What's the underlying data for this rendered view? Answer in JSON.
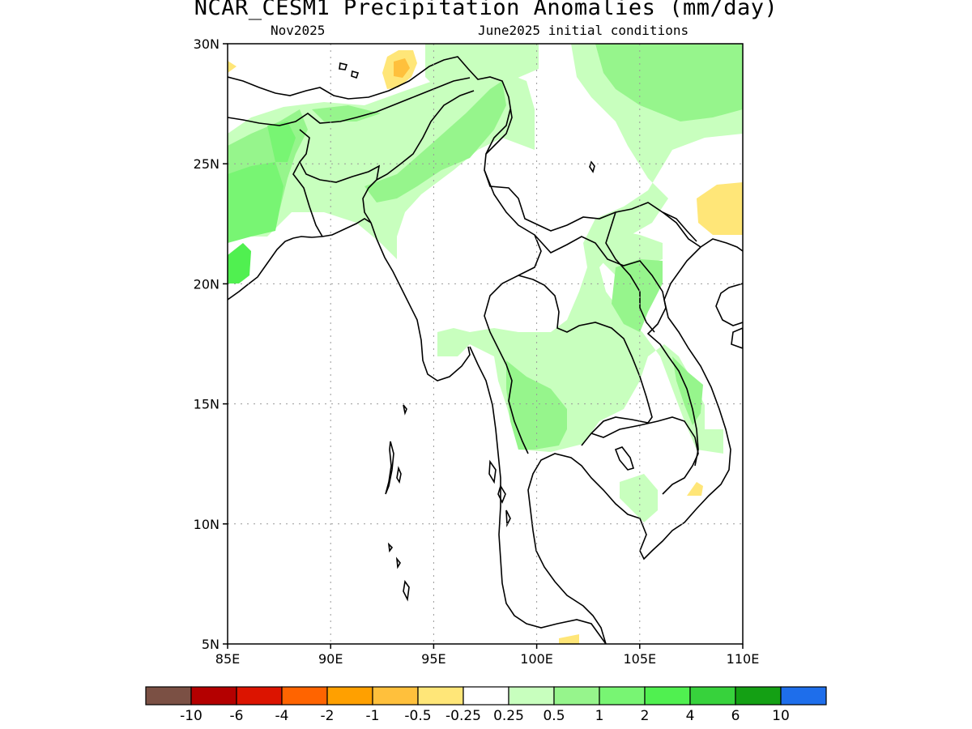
{
  "title": "NCAR_CESM1 Precipitation Anomalies (mm/day)",
  "subtitle_left": "Nov2025",
  "subtitle_right": "June2025 initial conditions",
  "map": {
    "lon_range": [
      85,
      110
    ],
    "lat_range": [
      5,
      30
    ],
    "x_ticks": [
      {
        "value": 85,
        "label": "85E"
      },
      {
        "value": 90,
        "label": "90E"
      },
      {
        "value": 95,
        "label": "95E"
      },
      {
        "value": 100,
        "label": "100E"
      },
      {
        "value": 105,
        "label": "105E"
      },
      {
        "value": 110,
        "label": "110E"
      }
    ],
    "y_ticks": [
      {
        "value": 5,
        "label": "5N"
      },
      {
        "value": 10,
        "label": "10N"
      },
      {
        "value": 15,
        "label": "15N"
      },
      {
        "value": 20,
        "label": "20N"
      },
      {
        "value": 25,
        "label": "25N"
      },
      {
        "value": 30,
        "label": "30N"
      }
    ],
    "grid": "dotted",
    "region": "South and Southeast Asia (Bangladesh, Myanmar, Thailand, Indochina)"
  },
  "colorbar": {
    "colors": [
      "#7b5044",
      "#b40000",
      "#dc1400",
      "#ff6400",
      "#ffa000",
      "#ffc03c",
      "#ffe678",
      "#ffffff",
      "#c8ffbe",
      "#96f58c",
      "#78f573",
      "#50f050",
      "#37d23c",
      "#14a014",
      "#1e6eeb"
    ],
    "labels": [
      "-10",
      "-6",
      "-4",
      "-2",
      "-1",
      "-0.5",
      "-0.25",
      "0.25",
      "0.5",
      "1",
      "2",
      "4",
      "6",
      "10"
    ]
  }
}
